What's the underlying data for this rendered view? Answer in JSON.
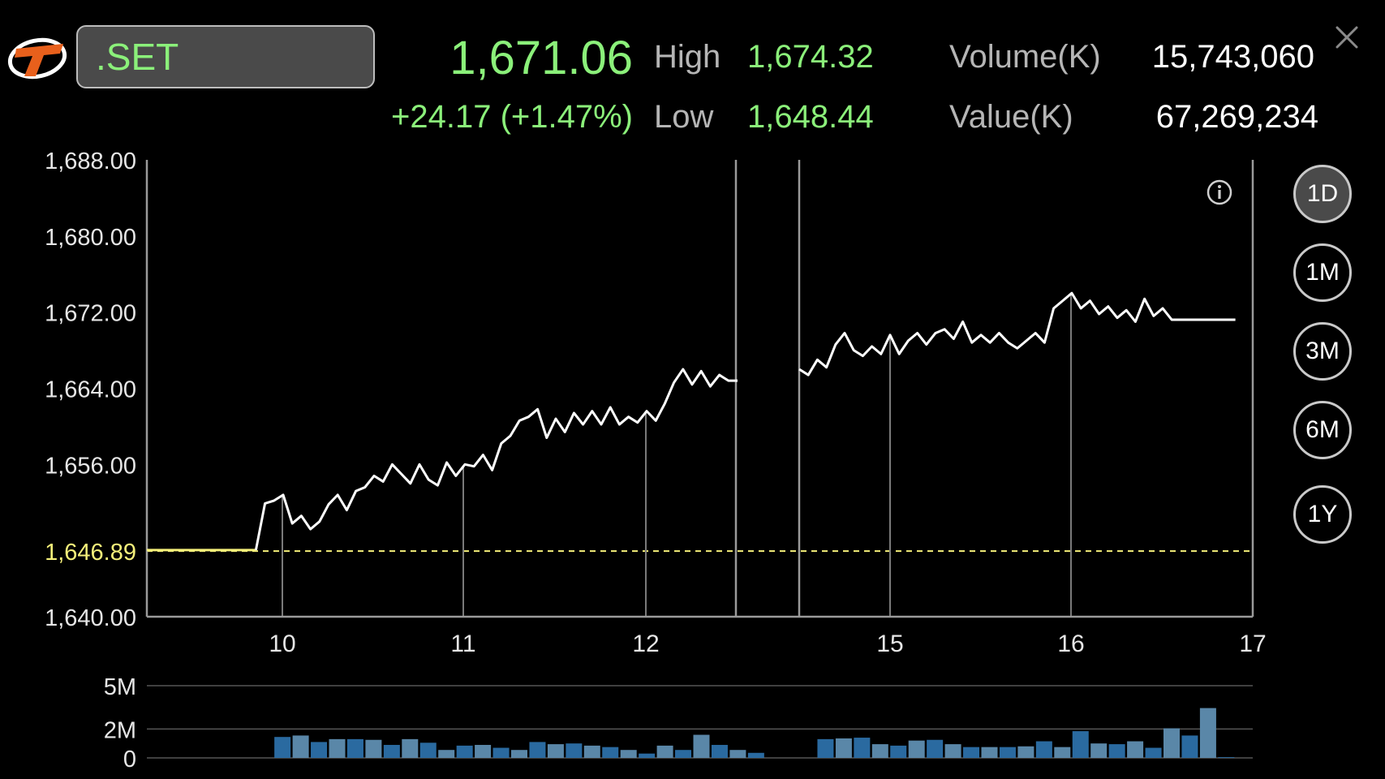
{
  "header": {
    "symbol": ".SET",
    "last": "1,671.06",
    "change": "+24.17 (+1.47%)",
    "high_label": "High",
    "high_value": "1,674.32",
    "low_label": "Low",
    "low_value": "1,648.44",
    "volume_label": "Volume(K)",
    "volume_value": "15,743,060",
    "value_label": "Value(K)",
    "value_value": "67,269,234"
  },
  "ranges": [
    {
      "label": "1D",
      "active": true
    },
    {
      "label": "1M",
      "active": false
    },
    {
      "label": "3M",
      "active": false
    },
    {
      "label": "6M",
      "active": false
    },
    {
      "label": "1Y",
      "active": false
    }
  ],
  "colors": {
    "up": "#8bf07a",
    "price_line": "#ffffff",
    "prev_close": "#f5f07a",
    "volume_a": "#5a87a8",
    "volume_b": "#2a6aa0"
  },
  "chart_data": {
    "type": "line",
    "ylim": [
      1640,
      1688
    ],
    "y_ticks": [
      "1,688.00",
      "1,680.00",
      "1,672.00",
      "1,664.00",
      "1,656.00",
      "1,640.00"
    ],
    "y_tick_values": [
      1688,
      1680,
      1672,
      1664,
      1656,
      1640
    ],
    "prev_close": 1646.89,
    "prev_close_label": "1,646.89",
    "x_ticks": [
      "10",
      "11",
      "12",
      "15",
      "16",
      "17"
    ],
    "segments": [
      [
        1647.0,
        1647.0,
        1647.0,
        1647.0,
        1647.0,
        1647.0,
        1647.0,
        1647.0,
        1647.0,
        1647.0,
        1647.0,
        1647.0,
        1647.0,
        1651.9,
        1652.2,
        1652.8,
        1649.8,
        1650.6,
        1649.2,
        1650.0,
        1651.8,
        1652.8,
        1651.2,
        1653.2,
        1653.6,
        1654.8,
        1654.2,
        1656.0,
        1655.0,
        1654.0,
        1656.0,
        1654.4,
        1653.8,
        1656.2,
        1654.8,
        1656.0,
        1655.8,
        1657.0,
        1655.4,
        1658.2,
        1659.0,
        1660.6,
        1661.0,
        1661.8,
        1658.8,
        1660.8,
        1659.4,
        1661.4,
        1660.2,
        1661.6,
        1660.2,
        1662.0,
        1660.2,
        1661.0,
        1660.4,
        1661.6,
        1660.6,
        1662.4,
        1664.6,
        1666.0,
        1664.4,
        1665.8,
        1664.2,
        1665.4,
        1664.8,
        1664.8
      ],
      [
        1666.0,
        1665.4,
        1667.0,
        1666.2,
        1668.6,
        1669.8,
        1668.0,
        1667.4,
        1668.4,
        1667.6,
        1669.6,
        1667.6,
        1669.0,
        1669.8,
        1668.6,
        1669.8,
        1670.2,
        1669.2,
        1671.0,
        1668.8,
        1669.6,
        1668.8,
        1669.8,
        1668.8,
        1668.2,
        1669.0,
        1669.8,
        1668.8,
        1672.4,
        1673.2,
        1674.0,
        1672.4,
        1673.2,
        1671.8,
        1672.6,
        1671.4,
        1672.2,
        1671.0,
        1673.4,
        1671.6,
        1672.4,
        1671.2,
        1671.2,
        1671.2,
        1671.2,
        1671.2,
        1671.2,
        1671.2,
        1671.2
      ]
    ],
    "volume_ticks": [
      "5M",
      "2M",
      "0"
    ],
    "volume_tick_values": [
      5,
      2,
      0
    ],
    "volume_unit": "M",
    "volume_ylim": [
      0,
      5
    ],
    "volume": [
      [
        0,
        0,
        0,
        0,
        0,
        0,
        0,
        1.45,
        1.55,
        1.1,
        1.3,
        1.3,
        1.25,
        0.9,
        1.3,
        1.05,
        0.55,
        0.85,
        0.9,
        0.7,
        0.55,
        1.1,
        0.95,
        1.0,
        0.85,
        0.75,
        0.55,
        0.3,
        0.85,
        0.55,
        1.6,
        0.9,
        0.55,
        0.35
      ],
      [
        0,
        1.3,
        1.35,
        1.4,
        0.95,
        0.85,
        1.2,
        1.25,
        0.95,
        0.75,
        0.75,
        0.75,
        0.8,
        1.15,
        0.75,
        1.85,
        1.0,
        0.95,
        1.15,
        0.7,
        2.05,
        1.55,
        3.45,
        0.05
      ]
    ]
  }
}
